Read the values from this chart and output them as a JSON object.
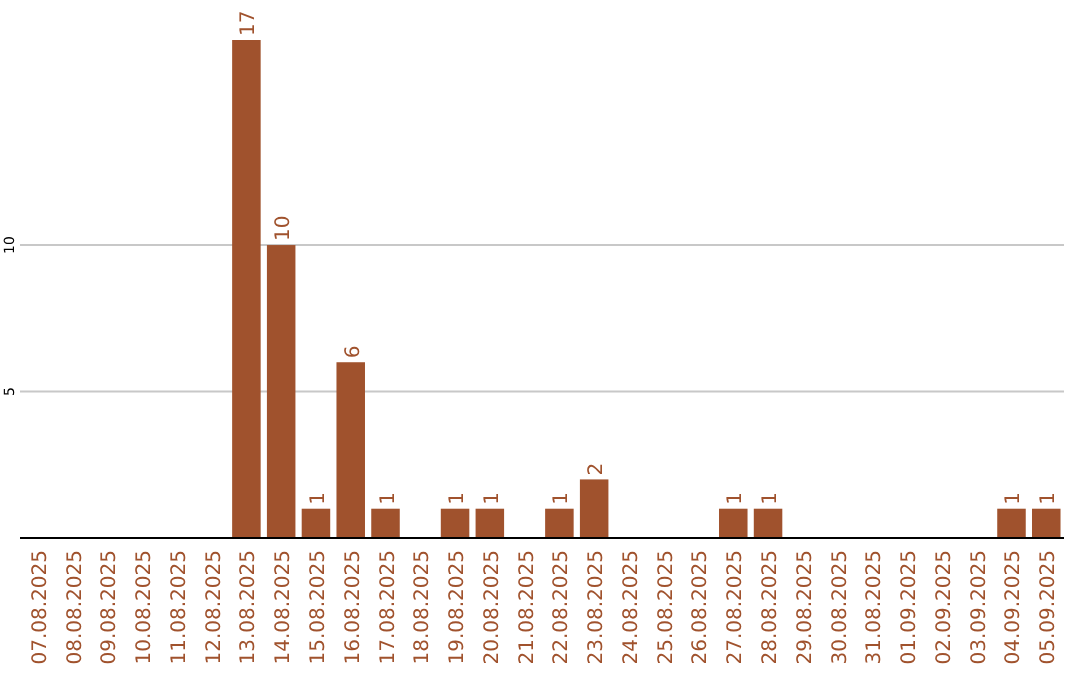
{
  "chart_data": {
    "type": "bar",
    "categories": [
      "07.08.2025",
      "08.08.2025",
      "09.08.2025",
      "10.08.2025",
      "11.08.2025",
      "12.08.2025",
      "13.08.2025",
      "14.08.2025",
      "15.08.2025",
      "16.08.2025",
      "17.08.2025",
      "18.08.2025",
      "19.08.2025",
      "20.08.2025",
      "21.08.2025",
      "22.08.2025",
      "23.08.2025",
      "24.08.2025",
      "25.08.2025",
      "26.08.2025",
      "27.08.2025",
      "28.08.2025",
      "29.08.2025",
      "30.08.2025",
      "31.08.2025",
      "01.09.2025",
      "02.09.2025",
      "03.09.2025",
      "04.09.2025",
      "05.09.2025"
    ],
    "values": [
      0,
      0,
      0,
      0,
      0,
      0,
      17,
      10,
      1,
      6,
      1,
      0,
      1,
      1,
      0,
      1,
      2,
      0,
      0,
      0,
      1,
      1,
      0,
      0,
      0,
      0,
      0,
      0,
      1,
      1
    ],
    "value_labels": [
      null,
      null,
      null,
      null,
      null,
      null,
      "17",
      "10",
      "1",
      "6",
      "1",
      null,
      "1",
      "1",
      null,
      "1",
      "2",
      null,
      null,
      null,
      "1",
      "1",
      null,
      null,
      null,
      null,
      null,
      null,
      "1",
      "1"
    ],
    "color": "#a0522d",
    "ylim": [
      0,
      17
    ],
    "yticks": [
      5,
      10
    ],
    "grid": "y"
  }
}
